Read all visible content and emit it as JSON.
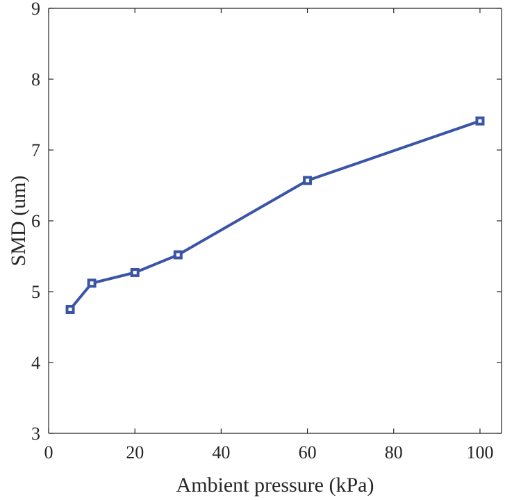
{
  "chart_data": {
    "type": "line",
    "title": "",
    "xlabel": "Ambient pressure (kPa)",
    "ylabel": "SMD (um)",
    "xlim": [
      0,
      105
    ],
    "ylim": [
      3,
      9
    ],
    "xticks": [
      0,
      20,
      40,
      60,
      80,
      100
    ],
    "yticks": [
      3,
      4,
      5,
      6,
      7,
      8,
      9
    ],
    "grid": false,
    "series": [
      {
        "name": "SMD",
        "color": "#3a55a8",
        "marker": "square",
        "x": [
          5,
          10,
          20,
          30,
          60,
          100
        ],
        "y": [
          4.75,
          5.12,
          5.27,
          5.52,
          6.57,
          7.41
        ]
      }
    ]
  }
}
